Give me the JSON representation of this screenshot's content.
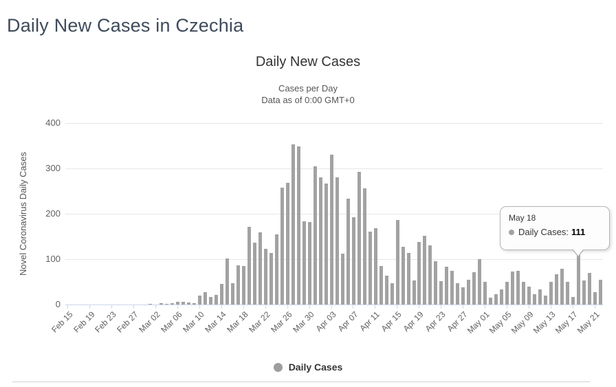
{
  "page": {
    "title": "Daily New Cases in Czechia"
  },
  "chart": {
    "legend_label": "Daily Cases",
    "colors": {
      "bar": "#a2a2a2",
      "legend_marker": "#9e9e9e",
      "gridline": "#e6e6e6",
      "axis_line": "#ccd6eb",
      "page_title_text": "#3f4b5b",
      "tick_label_text": "#606060"
    }
  },
  "tooltip": {
    "date": "May 18",
    "series_label": "Daily Cases:",
    "value": "111"
  },
  "chart_data": {
    "type": "bar",
    "title": "Daily New Cases",
    "subtitle1": "Cases per Day",
    "subtitle2": "Data as of 0:00 GMT+0",
    "ylabel": "Novel Coronavirus Daily Cases",
    "ylim": [
      0,
      400
    ],
    "yticks": [
      0,
      100,
      200,
      300,
      400
    ],
    "grid": true,
    "legend": [
      "Daily Cases"
    ],
    "legend_position": "bottom",
    "x_tick_interval": 4,
    "highlighted_point": {
      "category": "May 18",
      "value": 111
    },
    "categories": [
      "Feb 15",
      "Feb 16",
      "Feb 17",
      "Feb 18",
      "Feb 19",
      "Feb 20",
      "Feb 21",
      "Feb 22",
      "Feb 23",
      "Feb 24",
      "Feb 25",
      "Feb 26",
      "Feb 27",
      "Feb 28",
      "Feb 29",
      "Mar 01",
      "Mar 02",
      "Mar 03",
      "Mar 04",
      "Mar 05",
      "Mar 06",
      "Mar 07",
      "Mar 08",
      "Mar 09",
      "Mar 10",
      "Mar 11",
      "Mar 12",
      "Mar 13",
      "Mar 14",
      "Mar 15",
      "Mar 16",
      "Mar 17",
      "Mar 18",
      "Mar 19",
      "Mar 20",
      "Mar 21",
      "Mar 22",
      "Mar 23",
      "Mar 24",
      "Mar 25",
      "Mar 26",
      "Mar 27",
      "Mar 28",
      "Mar 29",
      "Mar 30",
      "Mar 31",
      "Apr 01",
      "Apr 02",
      "Apr 03",
      "Apr 04",
      "Apr 05",
      "Apr 06",
      "Apr 07",
      "Apr 08",
      "Apr 09",
      "Apr 10",
      "Apr 11",
      "Apr 12",
      "Apr 13",
      "Apr 14",
      "Apr 15",
      "Apr 16",
      "Apr 17",
      "Apr 18",
      "Apr 19",
      "Apr 20",
      "Apr 21",
      "Apr 22",
      "Apr 23",
      "Apr 24",
      "Apr 25",
      "Apr 26",
      "Apr 27",
      "Apr 28",
      "Apr 29",
      "Apr 30",
      "May 01",
      "May 02",
      "May 03",
      "May 04",
      "May 05",
      "May 06",
      "May 07",
      "May 08",
      "May 09",
      "May 10",
      "May 11",
      "May 12",
      "May 13",
      "May 14",
      "May 15",
      "May 16",
      "May 17",
      "May 18",
      "May 19",
      "May 20",
      "May 21",
      "May 22"
    ],
    "values": [
      0,
      0,
      0,
      0,
      0,
      0,
      0,
      0,
      0,
      0,
      0,
      0,
      0,
      0,
      0,
      2,
      0,
      3,
      2,
      3,
      6,
      6,
      4,
      3,
      19,
      27,
      17,
      21,
      45,
      101,
      47,
      87,
      85,
      171,
      136,
      159,
      123,
      113,
      155,
      258,
      268,
      353,
      349,
      184,
      182,
      305,
      280,
      267,
      331,
      281,
      112,
      233,
      193,
      293,
      256,
      161,
      168,
      85,
      64,
      47,
      186,
      128,
      113,
      53,
      138,
      151,
      130,
      95,
      51,
      83,
      75,
      47,
      38,
      55,
      71,
      100,
      50,
      15,
      22,
      33,
      50,
      72,
      74,
      50,
      39,
      22,
      33,
      20,
      50,
      67,
      79,
      50,
      17,
      111,
      53,
      70,
      27,
      55
    ]
  }
}
